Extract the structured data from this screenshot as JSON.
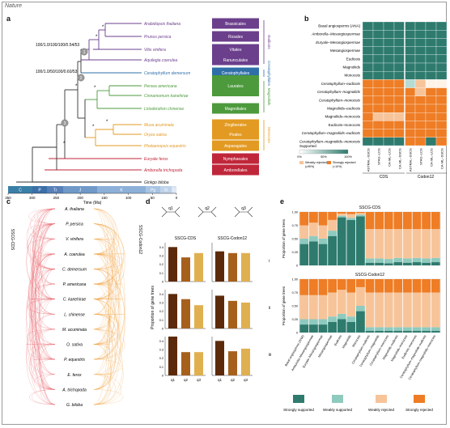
{
  "header_mark": "Nature",
  "panel_a": {
    "label": "a",
    "taxa": [
      "Arabidopsis thaliana",
      "Prunus persica",
      "Vitis vinifera",
      "Aquilegia coerulea",
      "Ceratophyllum demersum",
      "Persea americana",
      "Cinnamomum kanehirae",
      "Liriodendron chinense",
      "Musa acuminata",
      "Oryza sativa",
      "Phalaenopsis equestris",
      "Euryale ferox",
      "Amborella trichopoda",
      "Ginkgo biloba"
    ],
    "orders": [
      {
        "name": "Brassicales",
        "color": "#6b3f8c"
      },
      {
        "name": "Rosales",
        "color": "#6b3f8c"
      },
      {
        "name": "Vitales",
        "color": "#6b3f8c"
      },
      {
        "name": "Ranunculales",
        "color": "#6b3f8c"
      },
      {
        "name": "Ceratophyllales",
        "color": "#2f6fa8"
      },
      {
        "name": "Laurales",
        "color": "#4c9a3c"
      },
      {
        "name": "Magnoliales",
        "color": "#4c9a3c"
      },
      {
        "name": "Zingiberales",
        "color": "#e39a22"
      },
      {
        "name": "Poales",
        "color": "#e39a22"
      },
      {
        "name": "Asparagales",
        "color": "#e39a22"
      },
      {
        "name": "Nymphaeales",
        "color": "#c0263a"
      },
      {
        "name": "Amborellales",
        "color": "#c0263a"
      }
    ],
    "node_labels": [
      "100/1.0/100/100/0.54/53",
      "100/1.0/50/100/0.60/53"
    ],
    "node_numbers": [
      "1",
      "2",
      "3"
    ],
    "clade_labels": [
      "Eudicots",
      "Ceratophyllales",
      "Magnoliids",
      "Monocots"
    ],
    "timescale": [
      "C",
      "P",
      "Tr",
      "J",
      "K",
      "Pg",
      "N",
      "Q"
    ],
    "time_ticks": [
      "350",
      "300",
      "250",
      "200",
      "150",
      "100",
      "50",
      "0"
    ],
    "time_label": "Time (Ma)"
  },
  "panel_b": {
    "label": "b",
    "rows": [
      "Basal angiosperms (ANA)",
      "Amborella–Mesangiospermae",
      "Euryale–Mesangiospermae",
      "Mesangiospermae",
      "Eudicots",
      "Magnoliids",
      "Monocots",
      "Ceratophyllum–eudicots",
      "Ceratophyllum–magnoliids",
      "Ceratophyllum–monocots",
      "Magnoliids–eudicots",
      "Magnoliids–monocots",
      "Eudicots–monocots",
      "Ceratophyllum–magnoliids–eudicots",
      "Ceratophyllum–magnoliids–monocots"
    ],
    "columns": [
      "ASTRAL–SSCG",
      "STAG–LCG",
      "CA-ML–LCG",
      "CA-ML–SSCG",
      "ASTRAL–SSCG",
      "STAG–LCG",
      "CA-ML–LCG",
      "CA-ML–SSCG"
    ],
    "groups": [
      "CDS",
      "Codon12"
    ],
    "legend_supported": "Supported",
    "legend_weak_rej": "Weakly rejected",
    "legend_strong_rej": "Strongly rejected",
    "legend_ticks": [
      "0%",
      "50%",
      "100%"
    ],
    "legend_min": "(≥95%)",
    "legend_max": "(<10%)",
    "cells": [
      [
        1,
        1,
        1,
        1,
        1,
        1,
        1,
        1
      ],
      [
        1,
        1,
        1,
        1,
        1,
        1,
        1,
        1
      ],
      [
        1,
        1,
        1,
        1,
        1,
        1,
        1,
        1
      ],
      [
        1,
        1,
        1,
        1,
        1,
        1,
        1,
        1
      ],
      [
        1,
        1,
        1,
        1,
        1,
        1,
        1,
        1
      ],
      [
        1,
        1,
        1,
        1,
        1,
        1,
        1,
        1
      ],
      [
        1,
        1,
        1,
        1,
        1,
        1,
        1,
        1
      ],
      [
        0,
        0,
        0,
        0,
        3,
        2,
        4,
        4
      ],
      [
        0,
        0,
        0,
        0,
        0,
        2,
        0,
        0
      ],
      [
        0,
        0,
        0,
        0,
        0,
        0,
        0,
        0
      ],
      [
        0,
        0,
        0,
        0,
        0,
        0,
        0,
        0
      ],
      [
        0,
        2,
        2,
        2,
        0,
        0,
        0,
        0
      ],
      [
        0,
        0,
        0,
        0,
        0,
        0,
        0,
        0
      ],
      [
        0,
        0,
        0,
        0,
        0,
        0,
        0,
        0
      ],
      [
        1,
        1,
        1,
        1,
        0,
        0,
        1,
        0
      ]
    ]
  },
  "panel_c": {
    "label": "c",
    "left_title": "SSCG-CDS",
    "right_title": "SSCG-Codon12",
    "taxa": [
      "A. thaliana",
      "P. persica",
      "V. vinifera",
      "A. coerulea",
      "C. demersum",
      "P. americana",
      "C. kanehirae",
      "L. chinense",
      "M. acuminata",
      "O. sativa",
      "P. equestris",
      "E. ferox",
      "A. trichopoda",
      "G. biloba"
    ]
  },
  "panel_d": {
    "label": "d",
    "quartets": [
      "q1",
      "q2",
      "q3"
    ],
    "titles": [
      "SSCG-CDS",
      "SSCG-Codon12"
    ],
    "ylabel": "Proportion of gene trees",
    "row_labels": [
      "i",
      "ii",
      "iii"
    ],
    "yticks": [
      "0",
      "0.1",
      "0.2",
      "0.3",
      "0.4"
    ]
  },
  "panel_e": {
    "label": "e",
    "titles": [
      "SSCG-CDS",
      "SSCG-Codon12"
    ],
    "ylabel": "Proportion of gene trees",
    "yticks": [
      "0",
      "0.25",
      "0.50",
      "0.75",
      "1.00"
    ],
    "categories": [
      "Basal angiosperms (ANA)",
      "Amborella–Mesangiospermae",
      "Euryale–Mesangiospermae",
      "Mesangiospermae",
      "Eudicots",
      "Magnoliids",
      "Monocots",
      "Ceratophyllum–eudicots",
      "Ceratophyllum–magnoliids",
      "Ceratophyllum–monocots",
      "Magnoliids–eudicots",
      "Magnoliids–monocots",
      "Eudicots–monocots",
      "Ceratophyllum–magnoliids–eudicots",
      "Ceratophyllum–magnoliids–monocots"
    ],
    "legend": [
      "Strongly supported",
      "Weakly supported",
      "Weakly rejected",
      "Strongly rejected"
    ],
    "colors": [
      "#2e7b6e",
      "#8fcabe",
      "#f7c49a",
      "#ee7d25"
    ]
  },
  "chart_data": [
    {
      "type": "bar",
      "title": "SSCG-CDS",
      "categories": [
        "q1",
        "q2",
        "q3"
      ],
      "series": [
        {
          "values": [
            0.4,
            0.28,
            0.33
          ]
        },
        {
          "values": [
            0.4,
            0.34,
            0.27
          ]
        },
        {
          "values": [
            0.45,
            0.27,
            0.27
          ]
        }
      ],
      "ylim": [
        0,
        0.45
      ],
      "ylabel": "Proportion of gene trees"
    },
    {
      "type": "bar",
      "title": "SSCG-Codon12",
      "categories": [
        "q1",
        "q2",
        "q3"
      ],
      "series": [
        {
          "values": [
            0.35,
            0.33,
            0.33
          ]
        },
        {
          "values": [
            0.38,
            0.32,
            0.3
          ]
        },
        {
          "values": [
            0.4,
            0.28,
            0.31
          ]
        }
      ],
      "ylim": [
        0,
        0.45
      ],
      "ylabel": "Proportion of gene trees"
    },
    {
      "type": "bar",
      "title": "SSCG-CDS",
      "stacked": true,
      "categories": [
        "Basal angiosperms (ANA)",
        "Amborella–Mesangiospermae",
        "Euryale–Mesangiospermae",
        "Mesangiospermae",
        "Eudicots",
        "Magnoliids",
        "Monocots",
        "Ceratophyllum–eudicots",
        "Ceratophyllum–magnoliids",
        "Ceratophyllum–monocots",
        "Magnoliids–eudicots",
        "Magnoliids–monocots",
        "Eudicots–monocots",
        "Ceratophyllum–magnoliids–eudicots",
        "Ceratophyllum–magnoliids–monocots"
      ],
      "series": [
        {
          "name": "Strongly supported",
          "values": [
            0.4,
            0.45,
            0.4,
            0.55,
            0.9,
            0.85,
            0.92,
            0.05,
            0.05,
            0.04,
            0.06,
            0.05,
            0.06,
            0.05,
            0.06
          ]
        },
        {
          "name": "Weakly supported",
          "values": [
            0.1,
            0.1,
            0.1,
            0.1,
            0.03,
            0.04,
            0.03,
            0.08,
            0.08,
            0.08,
            0.08,
            0.08,
            0.08,
            0.08,
            0.08
          ]
        },
        {
          "name": "Weakly rejected",
          "values": [
            0.25,
            0.25,
            0.25,
            0.2,
            0.04,
            0.07,
            0.03,
            0.55,
            0.55,
            0.56,
            0.54,
            0.55,
            0.54,
            0.55,
            0.54
          ]
        },
        {
          "name": "Strongly rejected",
          "values": [
            0.25,
            0.2,
            0.25,
            0.15,
            0.03,
            0.04,
            0.02,
            0.32,
            0.32,
            0.32,
            0.32,
            0.32,
            0.32,
            0.32,
            0.32
          ]
        }
      ],
      "ylim": [
        0,
        1
      ],
      "ylabel": "Proportion of gene trees"
    },
    {
      "type": "bar",
      "title": "SSCG-Codon12",
      "stacked": true,
      "categories": [
        "Basal angiosperms (ANA)",
        "Amborella–Mesangiospermae",
        "Euryale–Mesangiospermae",
        "Mesangiospermae",
        "Eudicots",
        "Magnoliids",
        "Monocots",
        "Ceratophyllum–eudicots",
        "Ceratophyllum–magnoliids",
        "Ceratophyllum–monocots",
        "Magnoliids–eudicots",
        "Magnoliids–monocots",
        "Eudicots–monocots",
        "Ceratophyllum–magnoliids–eudicots",
        "Ceratophyllum–magnoliids–monocots"
      ],
      "series": [
        {
          "name": "Strongly supported",
          "values": [
            0.15,
            0.15,
            0.15,
            0.2,
            0.25,
            0.2,
            0.4,
            0.03,
            0.03,
            0.03,
            0.03,
            0.03,
            0.03,
            0.03,
            0.03
          ]
        },
        {
          "name": "Weakly supported",
          "values": [
            0.1,
            0.1,
            0.1,
            0.1,
            0.1,
            0.1,
            0.1,
            0.07,
            0.07,
            0.07,
            0.07,
            0.07,
            0.07,
            0.07,
            0.07
          ]
        },
        {
          "name": "Weakly rejected",
          "values": [
            0.45,
            0.45,
            0.45,
            0.45,
            0.45,
            0.45,
            0.35,
            0.65,
            0.65,
            0.65,
            0.65,
            0.65,
            0.65,
            0.65,
            0.65
          ]
        },
        {
          "name": "Strongly rejected",
          "values": [
            0.3,
            0.3,
            0.3,
            0.25,
            0.2,
            0.25,
            0.15,
            0.25,
            0.25,
            0.25,
            0.25,
            0.25,
            0.25,
            0.25,
            0.25
          ]
        }
      ],
      "ylim": [
        0,
        1
      ],
      "ylabel": "Proportion of gene trees"
    }
  ]
}
